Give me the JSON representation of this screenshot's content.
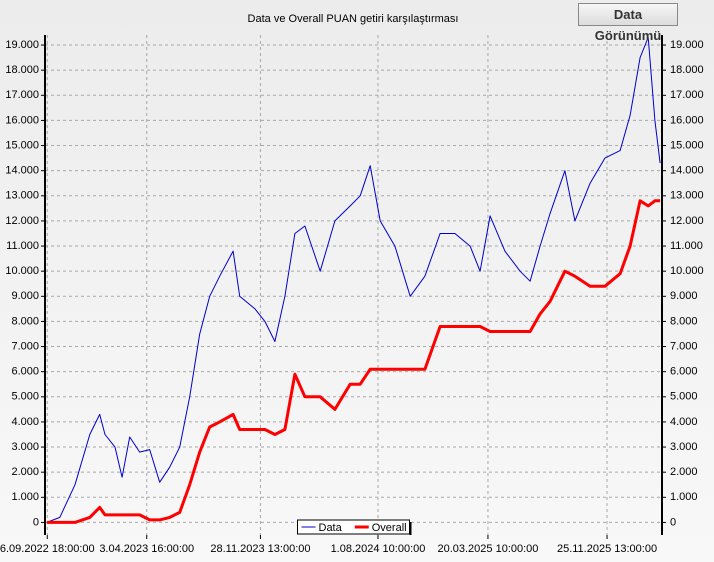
{
  "chart_data": {
    "type": "line",
    "title": "Data ve Overall PUAN getiri karşılaştırması",
    "button": "Data Görünümü",
    "x": [
      "2022-09-06",
      "2022-10-03",
      "2022-11-04",
      "2022-12-05",
      "2022-12-26",
      "2023-01-06",
      "2023-01-27",
      "2023-02-11",
      "2023-02-27",
      "2023-03-20",
      "2023-04-10",
      "2023-05-01",
      "2023-05-22",
      "2023-06-12",
      "2023-07-03",
      "2023-07-24",
      "2023-08-14",
      "2023-09-04",
      "2023-10-02",
      "2023-10-16",
      "2023-11-17",
      "2023-12-08",
      "2023-12-29",
      "2024-01-19",
      "2024-02-09",
      "2024-03-01",
      "2024-04-02",
      "2024-05-03",
      "2024-06-04",
      "2024-06-25",
      "2024-07-16",
      "2024-08-06",
      "2024-09-06",
      "2024-10-08",
      "2024-11-08",
      "2024-12-10",
      "2025-01-10",
      "2025-02-11",
      "2025-03-04",
      "2025-03-25",
      "2025-04-25",
      "2025-05-27",
      "2025-06-17",
      "2025-07-08",
      "2025-07-29",
      "2025-08-29",
      "2025-09-19",
      "2025-10-21",
      "2025-11-21",
      "2025-12-23",
      "2026-01-13",
      "2026-02-03",
      "2026-02-20",
      "2026-03-06",
      "2026-03-17"
    ],
    "series": [
      {
        "name": "Data",
        "color": "#0000cc",
        "line_width": 1,
        "values": [
          0,
          200,
          1500,
          3500,
          4300,
          3500,
          3000,
          1800,
          3400,
          2800,
          2900,
          1600,
          2200,
          3000,
          5000,
          7500,
          9000,
          9800,
          10800,
          9000,
          8500,
          8000,
          7200,
          9000,
          11500,
          11800,
          10000,
          12000,
          12600,
          13000,
          14200,
          12000,
          11000,
          9000,
          9800,
          11500,
          11500,
          11000,
          10000,
          12200,
          10800,
          10000,
          9600,
          11000,
          12300,
          14000,
          12000,
          13500,
          14500,
          14800,
          16200,
          18500,
          19300,
          16000,
          14300
        ]
      },
      {
        "name": "Overall",
        "color": "#ff0000",
        "line_width": 3,
        "values": [
          0,
          0,
          0,
          200,
          600,
          300,
          300,
          300,
          300,
          300,
          100,
          100,
          200,
          400,
          1500,
          2800,
          3800,
          4000,
          4300,
          3700,
          3700,
          3700,
          3500,
          3700,
          5900,
          5000,
          5000,
          4500,
          5500,
          5500,
          6100,
          6100,
          6100,
          6100,
          6100,
          7800,
          7800,
          7800,
          7800,
          7600,
          7600,
          7600,
          7600,
          8300,
          8800,
          10000,
          9800,
          9400,
          9400,
          9900,
          11000,
          12800,
          12600,
          12800,
          12800
        ]
      }
    ],
    "xlim": [
      "2022-09-02",
      "2026-03-21"
    ],
    "xticks": [
      {
        "value": "2022-09-06T18:00:00",
        "label": "6.09.2022 18:00:00"
      },
      {
        "value": "2023-04-03T16:00:00",
        "label": "3.04.2023 16:00:00"
      },
      {
        "value": "2023-11-28T13:00:00",
        "label": "28.11.2023 13:00:00"
      },
      {
        "value": "2024-08-01T10:00:00",
        "label": "1.08.2024 10:00:00"
      },
      {
        "value": "2025-03-20T10:00:00",
        "label": "20.03.2025 10:00:00"
      },
      {
        "value": "2025-11-25T13:00:00",
        "label": "25.11.2025 13:00:00"
      }
    ],
    "ylim": [
      -500,
      19400
    ],
    "yticks": [
      0,
      {
        "value": 1000,
        "label": "1.000"
      },
      {
        "value": 2000,
        "label": "2.000"
      },
      {
        "value": 3000,
        "label": "3.000"
      },
      {
        "value": 4000,
        "label": "4.000"
      },
      {
        "value": 5000,
        "label": "5.000"
      },
      {
        "value": 6000,
        "label": "6.000"
      },
      {
        "value": 7000,
        "label": "7.000"
      },
      {
        "value": 8000,
        "label": "8.000"
      },
      {
        "value": 9000,
        "label": "9.000"
      },
      {
        "value": 10000,
        "label": "10.000"
      },
      {
        "value": 11000,
        "label": "11.000"
      },
      {
        "value": 12000,
        "label": "12.000"
      },
      {
        "value": 13000,
        "label": "13.000"
      },
      {
        "value": 14000,
        "label": "14.000"
      },
      {
        "value": 15000,
        "label": "15.000"
      },
      {
        "value": 16000,
        "label": "16.000"
      },
      {
        "value": 17000,
        "label": "17.000"
      },
      {
        "value": 18000,
        "label": "18.000"
      },
      {
        "value": 19000,
        "label": "19.000"
      }
    ],
    "grid": true,
    "right_axis": true,
    "legend": "bottom"
  }
}
